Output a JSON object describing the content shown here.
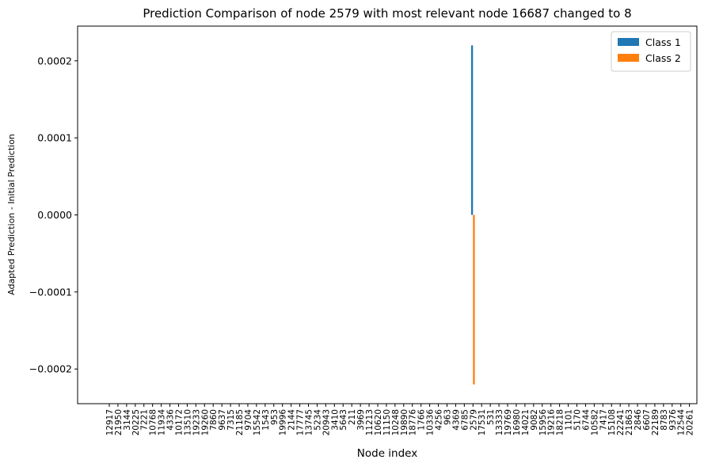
{
  "chart_data": {
    "type": "bar",
    "title": "Prediction Comparison of node 2579 with most relevant node 16687 changed to 8",
    "xlabel": "Node index",
    "ylabel": "Adapted Prediction - Initial Prediction",
    "ylim": [
      -0.000245,
      0.000245
    ],
    "yticks": [
      0.0002,
      0.0001,
      0.0,
      -0.0001,
      -0.0002
    ],
    "ytick_labels": [
      "0.0002",
      "0.0001",
      "0.0000",
      "−0.0001",
      "−0.0002"
    ],
    "grid": false,
    "legend_position": "top-right",
    "categories": [
      "12917",
      "21950",
      "3144",
      "20225",
      "7221",
      "10768",
      "11934",
      "4336",
      "10172",
      "13510",
      "19233",
      "19260",
      "7860",
      "9637",
      "7315",
      "21185",
      "9704",
      "15542",
      "1543",
      "953",
      "19996",
      "2144",
      "17777",
      "13745",
      "5234",
      "20943",
      "3410",
      "5643",
      "211",
      "3969",
      "11213",
      "10620",
      "11150",
      "10248",
      "19890",
      "18776",
      "1766",
      "10336",
      "4256",
      "963",
      "4369",
      "6785",
      "2579",
      "17531",
      "531",
      "13333",
      "19769",
      "16980",
      "14021",
      "9082",
      "15956",
      "19216",
      "18218",
      "1101",
      "5170",
      "6744",
      "10582",
      "7417",
      "15108",
      "22241",
      "21863",
      "2846",
      "6607",
      "22189",
      "8783",
      "9376",
      "12544",
      "20261"
    ],
    "series": [
      {
        "name": "Class 1",
        "color": "#1f77b4",
        "values": [
          0,
          0,
          0,
          0,
          0,
          0,
          0,
          0,
          0,
          0,
          0,
          0,
          0,
          0,
          0,
          0,
          0,
          0,
          0,
          0,
          0,
          0,
          0,
          0,
          0,
          0,
          0,
          0,
          0,
          0,
          0,
          0,
          0,
          0,
          0,
          0,
          0,
          0,
          0,
          0,
          0,
          0,
          0.00022,
          0,
          0,
          0,
          0,
          0,
          0,
          0,
          0,
          0,
          0,
          0,
          0,
          0,
          0,
          0,
          0,
          0,
          0,
          0,
          0,
          0,
          0,
          0,
          0,
          0
        ]
      },
      {
        "name": "Class 2",
        "color": "#ff7f0e",
        "values": [
          0,
          0,
          0,
          0,
          0,
          0,
          0,
          0,
          0,
          0,
          0,
          0,
          0,
          0,
          0,
          0,
          0,
          0,
          0,
          0,
          0,
          0,
          0,
          0,
          0,
          0,
          0,
          0,
          0,
          0,
          0,
          0,
          0,
          0,
          0,
          0,
          0,
          0,
          0,
          0,
          0,
          0,
          -0.00022,
          0,
          0,
          0,
          0,
          0,
          0,
          0,
          0,
          0,
          0,
          0,
          0,
          0,
          0,
          0,
          0,
          0,
          0,
          0,
          0,
          0,
          0,
          0,
          0,
          0
        ]
      }
    ]
  }
}
